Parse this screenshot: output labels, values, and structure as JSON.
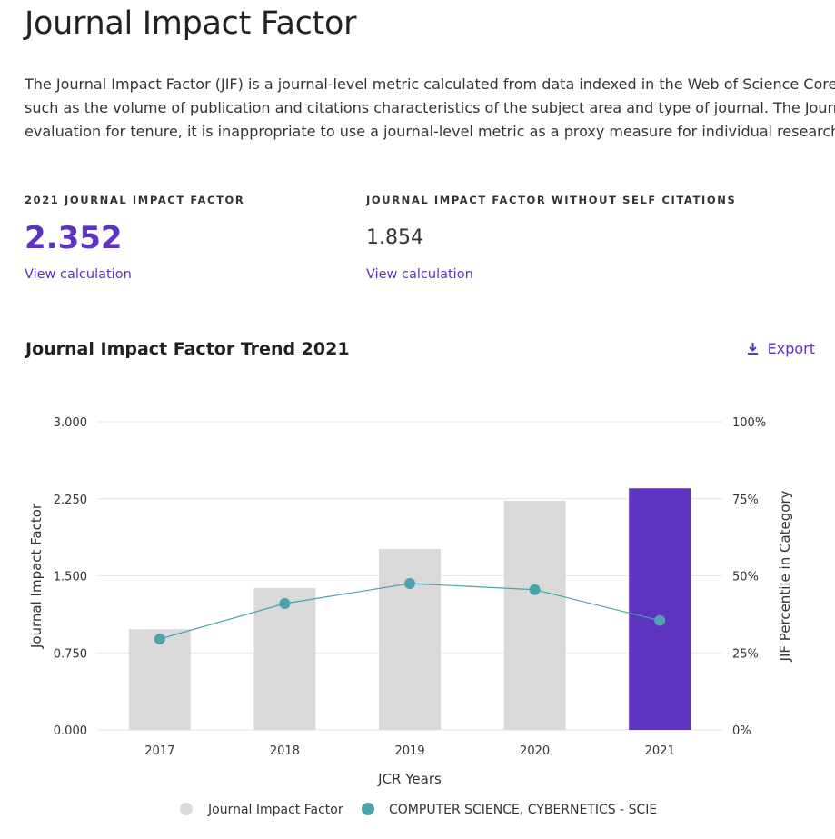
{
  "page": {
    "title": "Journal Impact Factor",
    "description_lines": [
      "The Journal Impact Factor (JIF) is a journal-level metric calculated from data indexed in the Web of Science Core Collec",
      "such as the volume of publication and citations characteristics of the subject area and type of journal. The Journal Imp",
      "evaluation for tenure, it is inappropriate to use a journal-level metric as a proxy measure for individual researchers, inst"
    ]
  },
  "metrics": {
    "jif": {
      "label": "2021 JOURNAL IMPACT FACTOR",
      "value": "2.352",
      "link": "View calculation"
    },
    "jif_no_self": {
      "label": "JOURNAL IMPACT FACTOR WITHOUT SELF CITATIONS",
      "value": "1.854",
      "link": "View calculation"
    }
  },
  "trend": {
    "title": "Journal Impact Factor Trend 2021",
    "export_label": "Export",
    "export_icon": "download-icon"
  },
  "colors": {
    "accent": "#5e33bf",
    "bar": "#d9d9d9",
    "line": "#4aa3ad",
    "grid": "#e6e6e6"
  },
  "chart_data": {
    "type": "bar",
    "categories": [
      "2017",
      "2018",
      "2019",
      "2020",
      "2021"
    ],
    "xlabel": "JCR Years",
    "ylabel": "Journal Impact Factor",
    "y2label": "JIF Percentile in Category",
    "ylim": [
      0,
      3
    ],
    "y2lim": [
      0,
      100
    ],
    "yticks": [
      "0.000",
      "0.750",
      "1.500",
      "2.250",
      "3.000"
    ],
    "y2ticks": [
      "0%",
      "25%",
      "50%",
      "75%",
      "100%"
    ],
    "grid": true,
    "legend_position": "bottom",
    "series": [
      {
        "name": "Journal Impact Factor",
        "type": "bar",
        "axis": "left",
        "values": [
          0.98,
          1.38,
          1.76,
          2.23,
          2.352
        ],
        "highlight_index": 4
      },
      {
        "name": "COMPUTER SCIENCE, CYBERNETICS - SCIE",
        "type": "line",
        "axis": "right",
        "values": [
          29.5,
          41,
          47.5,
          45.5,
          35.5
        ]
      }
    ]
  }
}
